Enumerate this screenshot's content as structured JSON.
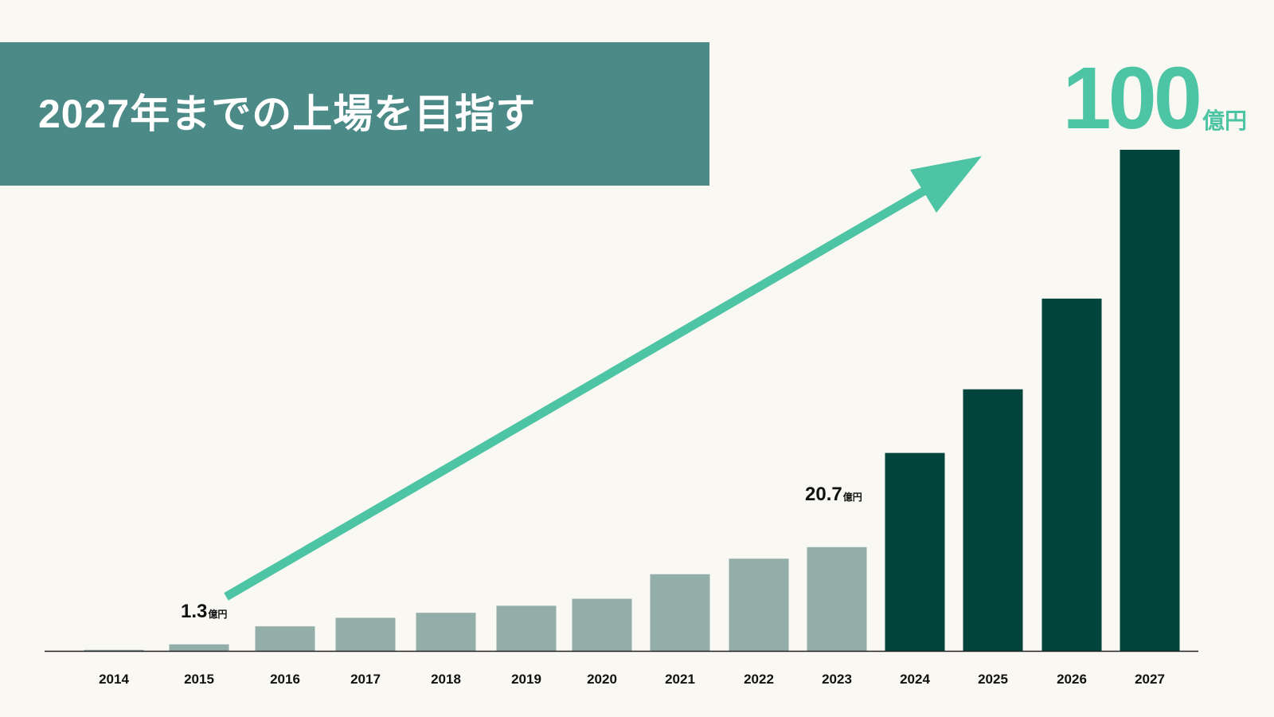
{
  "title": "2027年までの上場を目指す",
  "colors": {
    "background": "#f9f8f3",
    "banner": "#4c8a87",
    "actual_bar": "#93aea8",
    "forecast_bar": "#00443b",
    "arrow": "#4dc4a3",
    "axis": "#222222"
  },
  "target_label": {
    "value": "100",
    "unit": "億円"
  },
  "chart_data": {
    "type": "bar",
    "title": "",
    "xlabel": "",
    "ylabel": "",
    "ylim": [
      0,
      100
    ],
    "grid": false,
    "categories": [
      "2014",
      "2015",
      "2016",
      "2017",
      "2018",
      "2019",
      "2020",
      "2021",
      "2022",
      "2023",
      "2024",
      "2025",
      "2026",
      "2027"
    ],
    "values": [
      0.2,
      1.3,
      4.9,
      6.6,
      7.6,
      9.0,
      10.4,
      15.3,
      18.4,
      20.7,
      39.5,
      52.2,
      70.3,
      100
    ],
    "bar_kind": [
      "actual",
      "actual",
      "actual",
      "actual",
      "actual",
      "actual",
      "actual",
      "actual",
      "actual",
      "actual",
      "forecast",
      "forecast",
      "forecast",
      "forecast"
    ],
    "annotations": [
      {
        "category": "2015",
        "value": "1.3",
        "unit": "億円"
      },
      {
        "category": "2023",
        "value": "20.7",
        "unit": "億円"
      },
      {
        "category": "2027",
        "value": "100",
        "unit": "億円"
      }
    ],
    "trend_arrow": {
      "from_category": "2015",
      "to_category": "2027"
    }
  }
}
